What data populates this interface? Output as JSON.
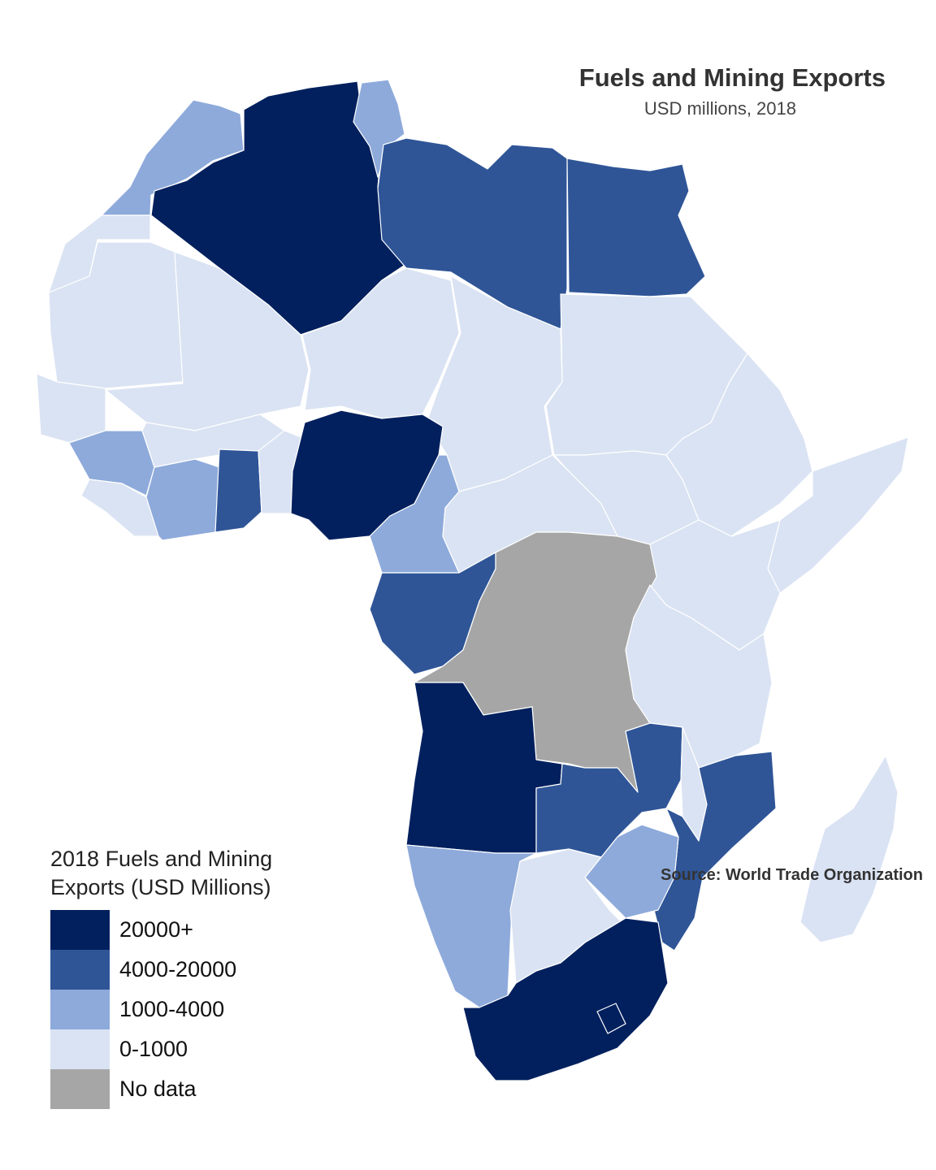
{
  "title": "Fuels and Mining Exports",
  "subtitle": "USD millions, 2018",
  "legend": {
    "title": "2018 Fuels and Mining Exports (USD Millions)",
    "items": [
      {
        "label": "20000+",
        "color": "#02205e"
      },
      {
        "label": "4000-20000",
        "color": "#2f5597"
      },
      {
        "label": "1000-4000",
        "color": "#8eaadb"
      },
      {
        "label": "0-1000",
        "color": "#dae3f3"
      },
      {
        "label": "No data",
        "color": "#a6a6a6"
      }
    ]
  },
  "source": "Source: World Trade Organization",
  "regions": [
    {
      "name": "Morocco",
      "category": "1000-4000"
    },
    {
      "name": "Western Sahara",
      "category": "0-1000"
    },
    {
      "name": "Algeria",
      "category": "20000+"
    },
    {
      "name": "Tunisia",
      "category": "1000-4000"
    },
    {
      "name": "Libya",
      "category": "4000-20000"
    },
    {
      "name": "Egypt",
      "category": "4000-20000"
    },
    {
      "name": "Mauritania",
      "category": "0-1000"
    },
    {
      "name": "Mali",
      "category": "0-1000"
    },
    {
      "name": "Niger",
      "category": "0-1000"
    },
    {
      "name": "Chad",
      "category": "0-1000"
    },
    {
      "name": "Sudan",
      "category": "0-1000"
    },
    {
      "name": "Senegal / Gambia / Guinea-Bissau",
      "category": "0-1000"
    },
    {
      "name": "Guinea",
      "category": "1000-4000"
    },
    {
      "name": "Sierra Leone / Liberia",
      "category": "0-1000"
    },
    {
      "name": "Cote d'Ivoire",
      "category": "1000-4000"
    },
    {
      "name": "Burkina Faso",
      "category": "0-1000"
    },
    {
      "name": "Ghana",
      "category": "4000-20000"
    },
    {
      "name": "Togo / Benin",
      "category": "0-1000"
    },
    {
      "name": "Nigeria",
      "category": "20000+"
    },
    {
      "name": "Cameroon",
      "category": "1000-4000"
    },
    {
      "name": "Central African Republic",
      "category": "0-1000"
    },
    {
      "name": "South Sudan",
      "category": "0-1000"
    },
    {
      "name": "Ethiopia / Eritrea",
      "category": "0-1000"
    },
    {
      "name": "Somalia / Djibouti",
      "category": "0-1000"
    },
    {
      "name": "Kenya / Uganda",
      "category": "0-1000"
    },
    {
      "name": "Equatorial Guinea / Gabon / Congo",
      "category": "4000-20000"
    },
    {
      "name": "DR Congo",
      "category": "No data"
    },
    {
      "name": "Rwanda / Burundi / Tanzania",
      "category": "0-1000"
    },
    {
      "name": "Angola",
      "category": "20000+"
    },
    {
      "name": "Zambia",
      "category": "4000-20000"
    },
    {
      "name": "Malawi",
      "category": "0-1000"
    },
    {
      "name": "Mozambique",
      "category": "4000-20000"
    },
    {
      "name": "Namibia",
      "category": "1000-4000"
    },
    {
      "name": "Botswana",
      "category": "0-1000"
    },
    {
      "name": "Zimbabwe",
      "category": "1000-4000"
    },
    {
      "name": "South Africa",
      "category": "20000+"
    },
    {
      "name": "Madagascar",
      "category": "0-1000"
    }
  ]
}
